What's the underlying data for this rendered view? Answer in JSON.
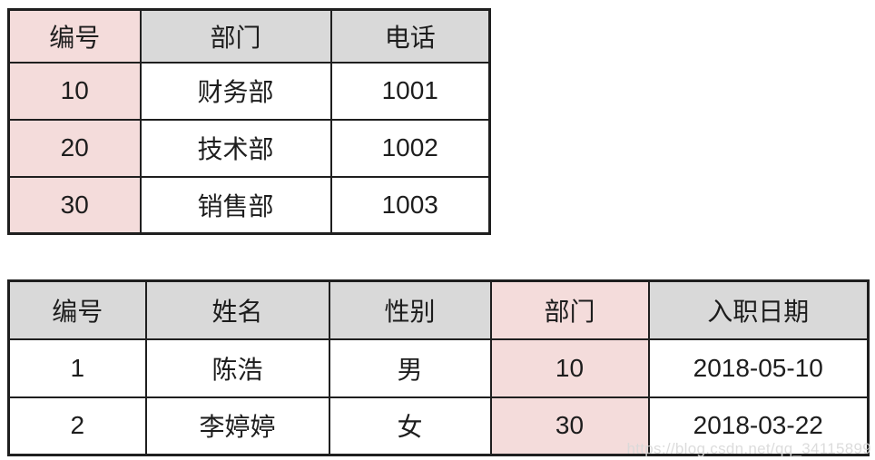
{
  "colors": {
    "background": "#ffffff",
    "header_gray": "#d9d9d9",
    "key_pink": "#f4dcdb",
    "border": "#1f1f1f",
    "text": "#1d1d1d",
    "watermark": "#d9d9d9"
  },
  "chart_data": [
    {
      "type": "table",
      "columns": [
        "编号",
        "部门",
        "电话"
      ],
      "rows": [
        [
          "10",
          "财务部",
          "1001"
        ],
        [
          "20",
          "技术部",
          "1002"
        ],
        [
          "30",
          "销售部",
          "1003"
        ]
      ],
      "highlighted_columns": [
        "编号"
      ],
      "layout_hint": "top-left table, 3 columns, gray header row, first column tinted pink"
    },
    {
      "type": "table",
      "columns": [
        "编号",
        "姓名",
        "性别",
        "部门",
        "入职日期"
      ],
      "rows": [
        [
          "1",
          "陈浩",
          "男",
          "10",
          "2018-05-10"
        ],
        [
          "2",
          "李婷婷",
          "女",
          "30",
          "2018-03-22"
        ]
      ],
      "highlighted_columns": [
        "部门"
      ],
      "layout_hint": "bottom full-width table, 5 columns, gray header row, 部门 column tinted pink"
    }
  ],
  "watermark": {
    "text": "https://blog.csdn.net/qq_34115899"
  }
}
